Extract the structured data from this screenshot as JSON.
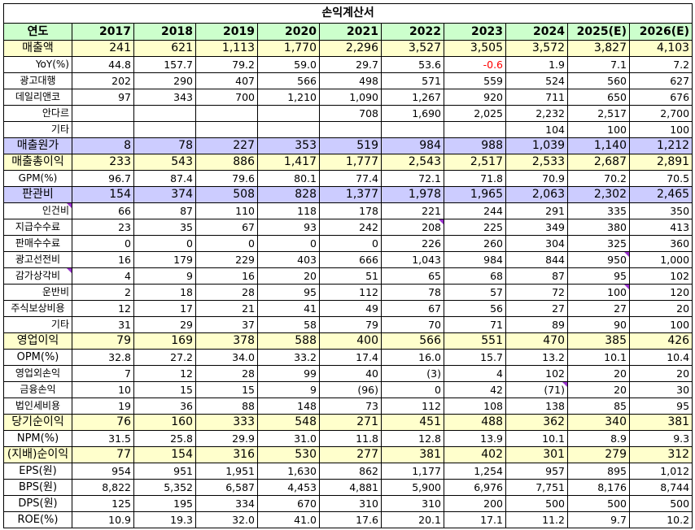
{
  "title": "손익계산서",
  "header": {
    "label": "연도",
    "years": [
      "2017",
      "2018",
      "2019",
      "2020",
      "2021",
      "2022",
      "2023",
      "2024",
      "2025(E)",
      "2026(E)"
    ]
  },
  "rows": [
    {
      "label": "매출액",
      "style": "key",
      "values": [
        "241",
        "621",
        "1,113",
        "1,770",
        "2,296",
        "3,527",
        "3,505",
        "3,572",
        "3,827",
        "4,103"
      ]
    },
    {
      "label": "YoY(%)",
      "style": "right",
      "values": [
        "44.8",
        "157.7",
        "79.2",
        "59.0",
        "29.7",
        "53.6",
        "-0.6",
        "1.9",
        "7.1",
        "7.2"
      ]
    },
    {
      "label": "광고대행",
      "style": "",
      "values": [
        "202",
        "290",
        "407",
        "566",
        "498",
        "571",
        "559",
        "524",
        "560",
        "627"
      ]
    },
    {
      "label": "데일리앤코",
      "style": "",
      "values": [
        "97",
        "343",
        "700",
        "1,210",
        "1,090",
        "1,267",
        "920",
        "711",
        "650",
        "676"
      ]
    },
    {
      "label": "안다르",
      "style": "right",
      "values": [
        "",
        "",
        "",
        "",
        "708",
        "1,690",
        "2,025",
        "2,232",
        "2,517",
        "2,700"
      ]
    },
    {
      "label": "기타",
      "style": "right",
      "values": [
        "",
        "",
        "",
        "",
        "",
        "",
        "",
        "104",
        "100",
        "100"
      ]
    },
    {
      "label": "매출원가",
      "style": "blue",
      "values": [
        "8",
        "78",
        "227",
        "353",
        "519",
        "984",
        "988",
        "1,039",
        "1,140",
        "1,212"
      ]
    },
    {
      "label": "매출총이익",
      "style": "key",
      "values": [
        "233",
        "543",
        "886",
        "1,417",
        "1,777",
        "2,543",
        "2,517",
        "2,533",
        "2,687",
        "2,891"
      ]
    },
    {
      "label": "GPM(%)",
      "style": "",
      "values": [
        "96.7",
        "87.4",
        "79.6",
        "80.1",
        "77.4",
        "72.1",
        "71.8",
        "70.9",
        "70.2",
        "70.5"
      ]
    },
    {
      "label": "판관비",
      "style": "blue",
      "values": [
        "154",
        "374",
        "508",
        "828",
        "1,377",
        "1,978",
        "1,965",
        "2,063",
        "2,302",
        "2,465"
      ]
    },
    {
      "label": "인건비",
      "style": "right",
      "values": [
        "66",
        "87",
        "110",
        "118",
        "178",
        "221",
        "244",
        "291",
        "335",
        "350"
      ]
    },
    {
      "label": "지급수수료",
      "style": "",
      "values": [
        "23",
        "35",
        "67",
        "93",
        "242",
        "208",
        "225",
        "349",
        "380",
        "413"
      ]
    },
    {
      "label": "판매수수료",
      "style": "",
      "values": [
        "0",
        "0",
        "0",
        "0",
        "0",
        "226",
        "260",
        "304",
        "325",
        "360"
      ]
    },
    {
      "label": "광고선전비",
      "style": "",
      "values": [
        "16",
        "179",
        "229",
        "403",
        "666",
        "1,043",
        "984",
        "844",
        "950",
        "1,000"
      ]
    },
    {
      "label": "감가상각비",
      "style": "",
      "values": [
        "4",
        "9",
        "16",
        "20",
        "51",
        "65",
        "68",
        "87",
        "95",
        "102"
      ]
    },
    {
      "label": "운반비",
      "style": "right",
      "values": [
        "2",
        "18",
        "28",
        "95",
        "112",
        "78",
        "57",
        "72",
        "100",
        "120"
      ]
    },
    {
      "label": "주식보상비용",
      "style": "",
      "values": [
        "12",
        "17",
        "21",
        "41",
        "49",
        "67",
        "56",
        "27",
        "27",
        "20"
      ]
    },
    {
      "label": "기타",
      "style": "right",
      "values": [
        "31",
        "29",
        "37",
        "58",
        "79",
        "70",
        "71",
        "89",
        "90",
        "100"
      ]
    },
    {
      "label": "영업이익",
      "style": "key",
      "values": [
        "79",
        "169",
        "378",
        "588",
        "400",
        "566",
        "551",
        "470",
        "385",
        "426"
      ]
    },
    {
      "label": "OPM(%)",
      "style": "big",
      "values": [
        "32.8",
        "27.2",
        "34.0",
        "33.2",
        "17.4",
        "16.0",
        "15.7",
        "13.2",
        "10.1",
        "10.4"
      ]
    },
    {
      "label": "영업외손익",
      "style": "",
      "values": [
        "7",
        "12",
        "28",
        "99",
        "40",
        "(3)",
        "4",
        "102",
        "20",
        "20"
      ]
    },
    {
      "label": "금융손익",
      "style": "",
      "values": [
        "10",
        "15",
        "15",
        "9",
        "(96)",
        "0",
        "42",
        "(71)",
        "20",
        "30"
      ]
    },
    {
      "label": "법인세비용",
      "style": "",
      "values": [
        "19",
        "36",
        "88",
        "148",
        "73",
        "112",
        "108",
        "138",
        "85",
        "95"
      ]
    },
    {
      "label": "당기순이익",
      "style": "key",
      "values": [
        "76",
        "160",
        "333",
        "548",
        "271",
        "451",
        "488",
        "362",
        "340",
        "381"
      ]
    },
    {
      "label": "NPM(%)",
      "style": "big",
      "values": [
        "31.5",
        "25.8",
        "29.9",
        "31.0",
        "11.8",
        "12.8",
        "13.9",
        "10.1",
        "8.9",
        "9.3"
      ]
    },
    {
      "label": "(지배)순이익",
      "style": "key",
      "values": [
        "77",
        "154",
        "316",
        "530",
        "277",
        "381",
        "402",
        "301",
        "279",
        "312"
      ]
    },
    {
      "label": "EPS(원)",
      "style": "big",
      "values": [
        "954",
        "951",
        "1,951",
        "1,630",
        "862",
        "1,177",
        "1,254",
        "957",
        "895",
        "1,012"
      ]
    },
    {
      "label": "BPS(원)",
      "style": "big",
      "values": [
        "8,822",
        "5,352",
        "6,587",
        "4,453",
        "4,881",
        "5,900",
        "6,976",
        "7,751",
        "8,176",
        "8,744"
      ]
    },
    {
      "label": "DPS(원)",
      "style": "big",
      "values": [
        "125",
        "195",
        "334",
        "670",
        "310",
        "310",
        "200",
        "500",
        "500",
        "500"
      ]
    },
    {
      "label": "ROE(%)",
      "style": "big",
      "values": [
        "10.9",
        "19.3",
        "32.0",
        "41.0",
        "17.6",
        "20.1",
        "17.1",
        "11.2",
        "9.7",
        "10.2"
      ]
    }
  ],
  "negative_color": "#ff0000",
  "highlight_colors": {
    "key": "#ffffcc",
    "blue": "#ccccff",
    "header": "#ccffcc"
  }
}
